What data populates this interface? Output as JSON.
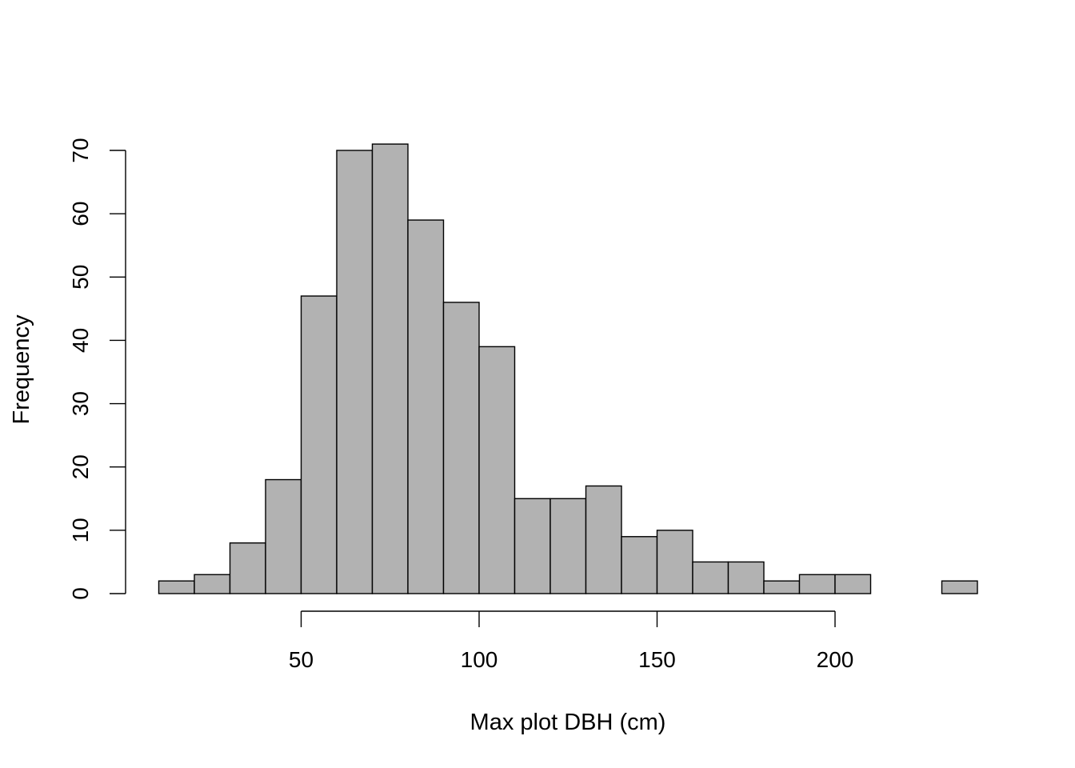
{
  "chart_data": {
    "type": "bar",
    "bin_edges": [
      10,
      20,
      30,
      40,
      50,
      60,
      70,
      80,
      90,
      100,
      110,
      120,
      130,
      140,
      150,
      160,
      170,
      180,
      190,
      200,
      210,
      220,
      230,
      240
    ],
    "values": [
      2,
      3,
      8,
      18,
      47,
      70,
      71,
      59,
      46,
      39,
      15,
      15,
      17,
      9,
      10,
      5,
      5,
      2,
      3,
      3,
      0,
      0,
      2
    ],
    "title": "",
    "xlabel": "Max plot DBH (cm)",
    "ylabel": "Frequency",
    "xticks": [
      "50",
      "100",
      "150",
      "200"
    ],
    "yticks": [
      "0",
      "10",
      "20",
      "30",
      "40",
      "50",
      "60",
      "70"
    ],
    "xlim": [
      10,
      240
    ],
    "ylim": [
      0,
      70
    ],
    "grid": false,
    "bar_color": "#b2b2b2",
    "edge_color": "#000000"
  }
}
